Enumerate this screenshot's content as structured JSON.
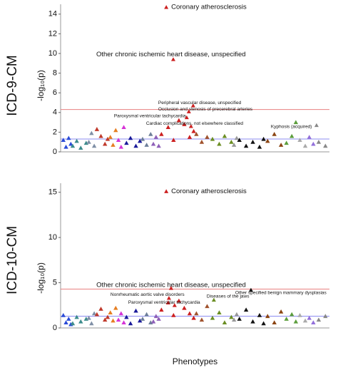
{
  "chart_data": [
    {
      "type": "scatter",
      "label": "ICD-9-CM",
      "ylabel": "-log₁₀(p)",
      "xlim": [
        0,
        100
      ],
      "ylim": [
        0,
        15
      ],
      "yticks": [
        0,
        2,
        4,
        6,
        8,
        10,
        12,
        14
      ],
      "hlines": [
        {
          "value": 4.3,
          "color": "#e88080"
        },
        {
          "value": 1.3,
          "color": "#8c8cf0"
        }
      ],
      "series": [
        {
          "color": "#2a4bd7",
          "x": [
            1,
            2,
            3,
            3.8
          ],
          "values": [
            1.2,
            0.5,
            1.4,
            0.8
          ]
        },
        {
          "color": "#3c8c8c",
          "x": [
            4.5,
            6,
            7.5,
            9.5
          ],
          "values": [
            0.6,
            1.1,
            0.4,
            0.9
          ]
        },
        {
          "color": "#7f8fa6",
          "x": [
            10.5,
            11.5,
            12.5
          ],
          "values": [
            1.0,
            1.9,
            0.6
          ]
        },
        {
          "color": "#c0392b",
          "x": [
            13.5,
            15,
            16.5,
            17.5
          ],
          "values": [
            2.3,
            1.6,
            0.8,
            1.3
          ]
        },
        {
          "color": "#e67e22",
          "x": [
            18.5,
            19.5,
            20.5
          ],
          "values": [
            1.5,
            0.7,
            2.2
          ]
        },
        {
          "color": "#d633d6",
          "x": [
            21.5,
            22.5,
            23.5
          ],
          "values": [
            1.2,
            0.5,
            2.5
          ]
        },
        {
          "color": "#1a1a9a",
          "x": [
            24.5,
            26,
            28,
            29.5
          ],
          "values": [
            0.9,
            1.4,
            0.6,
            1.1
          ]
        },
        {
          "color": "#6e7f99",
          "x": [
            30.5,
            32,
            33.5
          ],
          "values": [
            1.3,
            0.7,
            1.8
          ]
        },
        {
          "color": "#8e5fb8",
          "x": [
            34.5,
            35.5,
            36.5
          ],
          "values": [
            0.8,
            1.5,
            0.6
          ]
        },
        {
          "color": "#cc1f1f",
          "x": [
            37.5,
            40,
            42,
            44,
            46,
            48,
            49.5
          ],
          "values": [
            1.8,
            2.5,
            1.2,
            3.2,
            2.8,
            1.5,
            2.1
          ]
        },
        {
          "color": "#a0522d",
          "x": [
            50.5,
            52.5,
            54.5
          ],
          "values": [
            1.8,
            1.0,
            1.5
          ]
        },
        {
          "color": "#6b8e23",
          "x": [
            56.5,
            59,
            61,
            63.5
          ],
          "values": [
            1.3,
            0.8,
            1.6,
            1.0
          ]
        },
        {
          "color": "#999999",
          "x": [
            64.5,
            65.5
          ],
          "values": [
            0.7,
            1.4
          ]
        },
        {
          "color": "#111111",
          "x": [
            66.5,
            69,
            71.5,
            74,
            75.5
          ],
          "values": [
            1.2,
            0.6,
            1.0,
            0.5,
            1.3
          ]
        },
        {
          "color": "#8b4513",
          "x": [
            77,
            79.5,
            82
          ],
          "values": [
            1.1,
            1.8,
            0.7
          ]
        },
        {
          "color": "#5c9e3c",
          "x": [
            84,
            86,
            87.5
          ],
          "values": [
            0.9,
            1.6,
            3.0
          ]
        },
        {
          "color": "#aaaaaa",
          "x": [
            89,
            91
          ],
          "values": [
            1.2,
            0.6
          ]
        },
        {
          "color": "#9370db",
          "x": [
            92.5,
            94
          ],
          "values": [
            1.5,
            0.8
          ]
        },
        {
          "color": "#888888",
          "x": [
            96,
            98.5
          ],
          "values": [
            1.0,
            0.6
          ]
        }
      ],
      "annotations": [
        {
          "label": "Coronary atherosclerosis",
          "x": 39.3,
          "y": 14.7,
          "color": "#cc1f1f"
        },
        {
          "label": "Other chronic ischemic heart disease, unspecified",
          "x": 41.9,
          "y": 9.4,
          "color": "#cc1f1f"
        },
        {
          "label": "Peripheral vascular disease, unspecified",
          "x": 49.3,
          "y": 4.7,
          "color": "#cc1f1f"
        },
        {
          "label": "Occlusion and stenosis of precerebral arteries",
          "x": 47.7,
          "y": 4.1,
          "color": "#cc1f1f"
        },
        {
          "label": "Paroxysmal ventricular tachycardia",
          "x": 46.9,
          "y": 3.5,
          "color": "#cc1f1f"
        },
        {
          "label": "Cardiac complications, not elsewhere classified",
          "x": 48.5,
          "y": 2.6,
          "color": "#cc1f1f"
        },
        {
          "label": "Kyphosis (acquired)",
          "x": 95.2,
          "y": 2.7,
          "color": "#888888"
        }
      ]
    },
    {
      "type": "scatter",
      "label": "ICD-10-CM",
      "ylabel": "-log₁₀(p)",
      "xlabel": "Phenotypes",
      "xlim": [
        0,
        100
      ],
      "ylim": [
        0,
        16
      ],
      "yticks": [
        0,
        5,
        10,
        15
      ],
      "hlines": [
        {
          "value": 4.3,
          "color": "#e88080"
        },
        {
          "value": 1.3,
          "color": "#8c8cf0"
        }
      ],
      "series": [
        {
          "color": "#2a4bd7",
          "x": [
            1,
            2,
            3,
            3.8
          ],
          "values": [
            1.4,
            0.6,
            1.0,
            0.4
          ]
        },
        {
          "color": "#3c8c8c",
          "x": [
            4.5,
            6,
            7.5,
            9.5
          ],
          "values": [
            0.5,
            1.2,
            0.7,
            1.0
          ]
        },
        {
          "color": "#7f8fa6",
          "x": [
            10.5,
            11.5,
            12.5
          ],
          "values": [
            1.1,
            0.5,
            1.6
          ]
        },
        {
          "color": "#c0392b",
          "x": [
            13.5,
            15,
            16.5,
            17.5
          ],
          "values": [
            1.5,
            2.1,
            0.9,
            1.2
          ]
        },
        {
          "color": "#e67e22",
          "x": [
            18.5,
            19.5,
            20.5
          ],
          "values": [
            1.7,
            0.8,
            2.2
          ]
        },
        {
          "color": "#d633d6",
          "x": [
            21.5,
            22.5,
            23.5
          ],
          "values": [
            0.9,
            1.6,
            0.6
          ]
        },
        {
          "color": "#1a1a9a",
          "x": [
            24.5,
            26,
            28,
            29.5
          ],
          "values": [
            1.2,
            0.5,
            1.9,
            0.8
          ]
        },
        {
          "color": "#6e7f99",
          "x": [
            30.5,
            32,
            33.5
          ],
          "values": [
            1.0,
            1.5,
            0.6
          ]
        },
        {
          "color": "#8e5fb8",
          "x": [
            34.5,
            35.5,
            36.5
          ],
          "values": [
            0.7,
            1.3,
            1.0
          ]
        },
        {
          "color": "#cc1f1f",
          "x": [
            37.5,
            40,
            42,
            44,
            46,
            48,
            49.5
          ],
          "values": [
            2.0,
            2.8,
            1.4,
            3.0,
            2.2,
            1.6,
            1.1
          ]
        },
        {
          "color": "#a0522d",
          "x": [
            50.5,
            52.5,
            54.5
          ],
          "values": [
            1.6,
            0.9,
            2.4
          ]
        },
        {
          "color": "#6b8e23",
          "x": [
            56.5,
            59,
            61,
            63.5
          ],
          "values": [
            1.1,
            1.7,
            0.6,
            1.2
          ]
        },
        {
          "color": "#999999",
          "x": [
            64.5,
            65.5
          ],
          "values": [
            0.9,
            1.5
          ]
        },
        {
          "color": "#111111",
          "x": [
            66.5,
            69,
            71.5,
            74,
            75.5
          ],
          "values": [
            1.0,
            2.0,
            0.7,
            1.4,
            0.5
          ]
        },
        {
          "color": "#8b4513",
          "x": [
            77,
            79.5,
            82
          ],
          "values": [
            1.3,
            0.6,
            1.8
          ]
        },
        {
          "color": "#5c9e3c",
          "x": [
            84,
            86,
            87.5
          ],
          "values": [
            1.0,
            1.5,
            0.7
          ]
        },
        {
          "color": "#aaaaaa",
          "x": [
            89,
            91
          ],
          "values": [
            1.4,
            0.8
          ]
        },
        {
          "color": "#9370db",
          "x": [
            92.5,
            94
          ],
          "values": [
            1.1,
            0.6
          ]
        },
        {
          "color": "#888888",
          "x": [
            96,
            98.5
          ],
          "values": [
            0.9,
            1.3
          ]
        }
      ],
      "annotations": [
        {
          "label": "Coronary atherosclerosis",
          "x": 39.3,
          "y": 15.1,
          "color": "#cc1f1f"
        },
        {
          "label": "Other chronic ischemic heart disease, unspecified",
          "x": 41.1,
          "y": 4.4,
          "color": "#cc1f1f"
        },
        {
          "label": "Nonrheumatic aortic valve disorders",
          "x": 40.3,
          "y": 3.3,
          "color": "#cc1f1f"
        },
        {
          "label": "Diseases of the jaws",
          "x": 57,
          "y": 3.1,
          "color": "#6b8e23"
        },
        {
          "label": "Paroxysmal ventricular tachycardia",
          "x": 42.4,
          "y": 2.5,
          "color": "#cc1f1f"
        },
        {
          "label": "Other specified benign mammary dysplasias",
          "x": 70.8,
          "y": 4.2,
          "color": "#111111"
        }
      ]
    }
  ]
}
